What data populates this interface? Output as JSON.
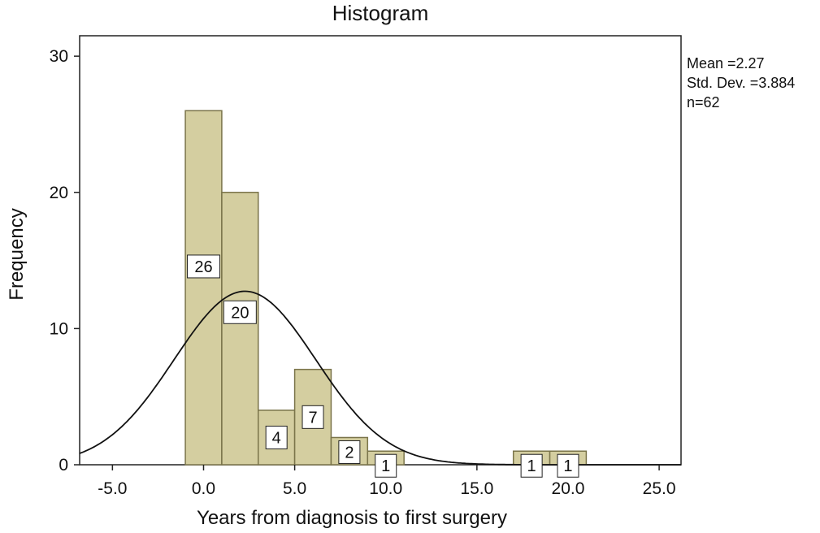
{
  "chart_data": {
    "type": "bar",
    "title": "Histogram",
    "xlabel": "Years from diagnosis to first surgery",
    "ylabel": "Frequency",
    "xlim": [
      -6.8,
      26.2
    ],
    "ylim": [
      0,
      31.5
    ],
    "x_ticks": [
      -5,
      0,
      5,
      10,
      15,
      20,
      25
    ],
    "x_tick_labels": [
      "-5.0",
      "0.0",
      "5.0",
      "10.0",
      "15.0",
      "20.0",
      "25.0"
    ],
    "y_ticks": [
      0,
      10,
      20,
      30
    ],
    "y_tick_labels": [
      "0",
      "10",
      "20",
      "30"
    ],
    "bins": [
      {
        "start": -1,
        "end": 1,
        "value": 26,
        "label": "26"
      },
      {
        "start": 1,
        "end": 3,
        "value": 20,
        "label": "20"
      },
      {
        "start": 3,
        "end": 5,
        "value": 4,
        "label": "4"
      },
      {
        "start": 5,
        "end": 7,
        "value": 7,
        "label": "7"
      },
      {
        "start": 7,
        "end": 9,
        "value": 2,
        "label": "2"
      },
      {
        "start": 9,
        "end": 11,
        "value": 1,
        "label": "1"
      },
      {
        "start": 17,
        "end": 19,
        "value": 1,
        "label": "1"
      },
      {
        "start": 19,
        "end": 21,
        "value": 1,
        "label": "1"
      }
    ],
    "normal_curve": {
      "mean": 2.27,
      "sd": 3.884,
      "n": 62,
      "bin_width": 2
    },
    "stats": {
      "mean": "Mean =2.27",
      "sd": "Std. Dev. =3.884",
      "n": "n=62"
    },
    "colors": {
      "bar_fill": "#d4cea0",
      "bar_stroke": "#7a744a",
      "curve": "#111111"
    },
    "grid": false
  }
}
